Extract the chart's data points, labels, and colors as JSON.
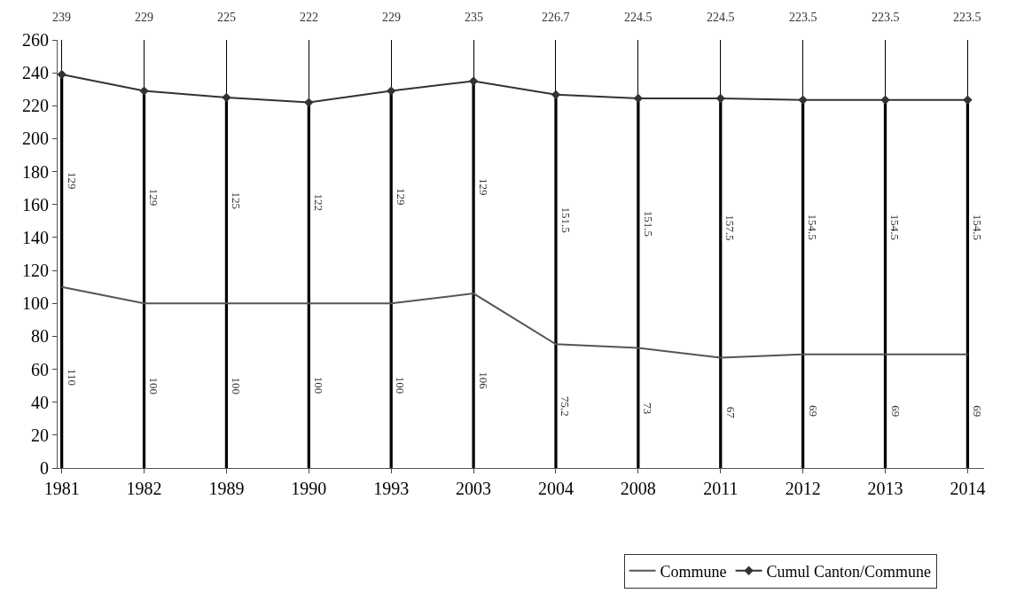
{
  "chart_data": {
    "type": "line",
    "categories": [
      "1981",
      "1982",
      "1989",
      "1990",
      "1993",
      "2003",
      "2004",
      "2008",
      "2011",
      "2012",
      "2013",
      "2014"
    ],
    "series": [
      {
        "type": "bar",
        "color": "#000000",
        "values": [
          110,
          100,
          100,
          100,
          100,
          106,
          75.2,
          73,
          67,
          69,
          69,
          69
        ],
        "value_labels": [
          "110",
          "100",
          "100",
          "100",
          "100",
          "106",
          "75.2",
          "73",
          "67",
          "69",
          "69",
          "69"
        ]
      },
      {
        "type": "bar",
        "color": "#000000",
        "values": [
          129,
          129,
          125,
          122,
          129,
          129,
          151.5,
          151.5,
          157.5,
          154.5,
          154.5,
          154.5
        ],
        "value_labels": [
          "129",
          "129",
          "125",
          "122",
          "129",
          "129",
          "151.5",
          "151.5",
          "157.5",
          "154.5",
          "154.5",
          "154.5"
        ]
      },
      {
        "name": "Commune",
        "color": "#555555",
        "marker": "none",
        "values": [
          110,
          100,
          100,
          100,
          100,
          106,
          75.2,
          73,
          67,
          69,
          69,
          69
        ]
      },
      {
        "name": "Cumul Canton/Commune",
        "color": "#333333",
        "marker": "diamond",
        "values": [
          239,
          229,
          225,
          222,
          229,
          235,
          226.7,
          224.5,
          224.5,
          223.5,
          223.5,
          223.5
        ],
        "value_labels": [
          "239",
          "229",
          "225",
          "222",
          "229",
          "235",
          "226.7",
          "224.5",
          "224.5",
          "223.5",
          "223.5",
          "223.5"
        ]
      }
    ],
    "stacked": true,
    "ylim": [
      0,
      260
    ],
    "yticks": [
      0,
      20,
      40,
      60,
      80,
      100,
      120,
      140,
      160,
      180,
      200,
      220,
      240,
      260
    ],
    "grid": "x",
    "legend": "bottom"
  }
}
